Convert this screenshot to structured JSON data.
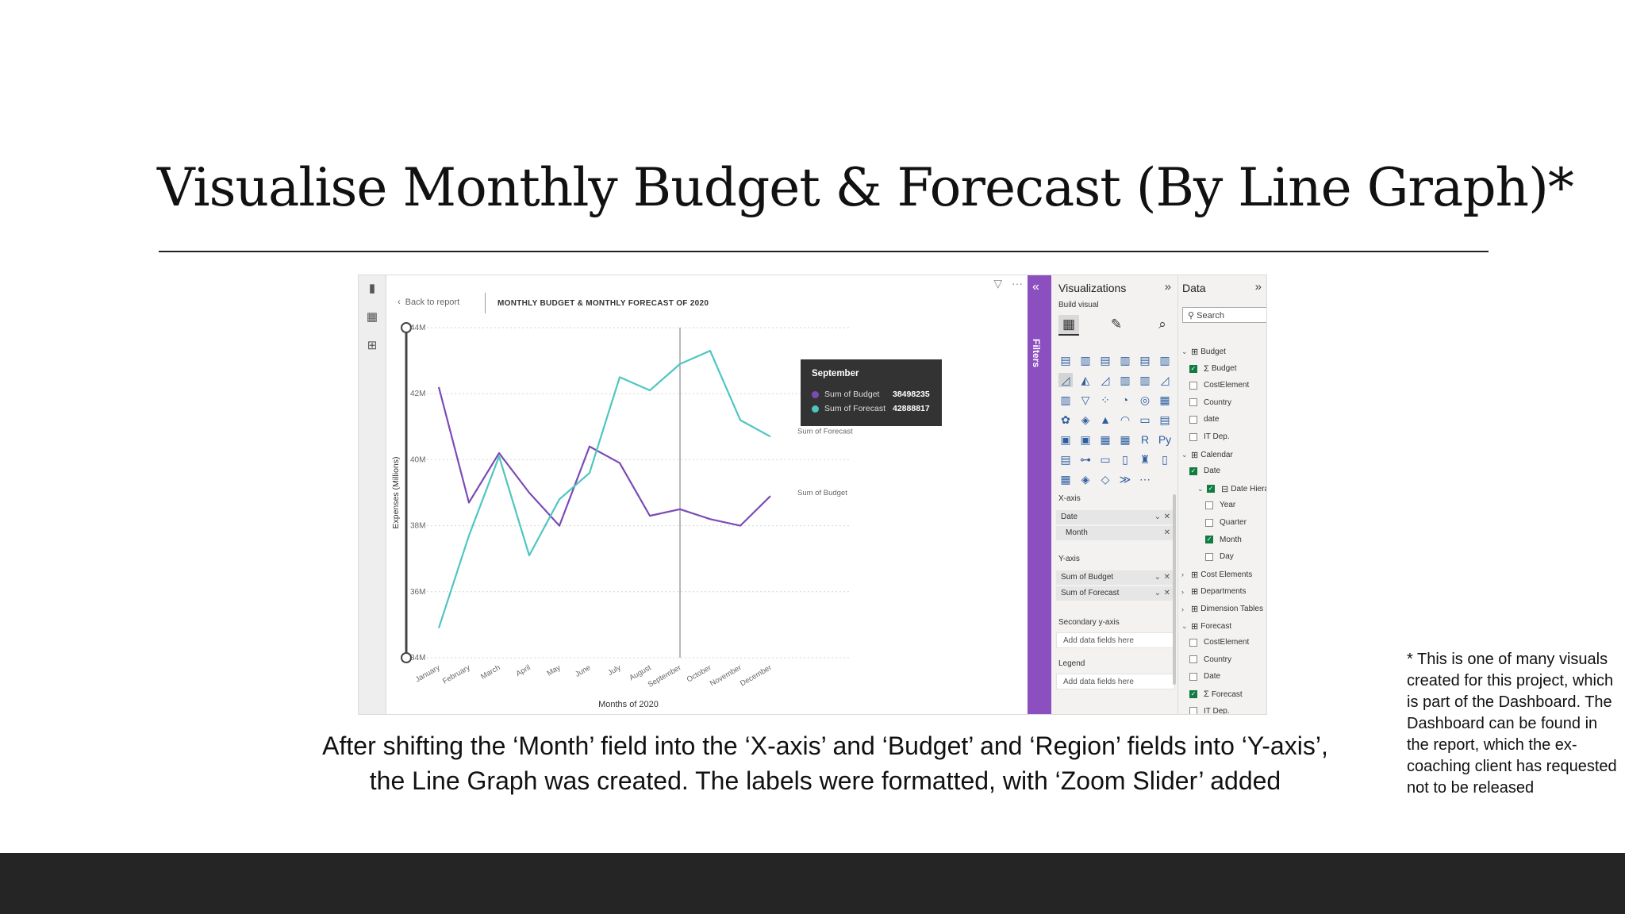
{
  "slide": {
    "title": "Visualise Monthly Budget & Forecast (By Line Graph)*",
    "caption_line1": "After shifting the ‘Month’ field into the ‘X-axis’ and ‘Budget’ and ‘Region’ fields into ‘Y-axis’,",
    "caption_line2": "the Line Graph was created. The labels were formatted, with ‘Zoom Slider’ added",
    "footnote": "* This is one of many visuals created for this project, which is part of the Dashboard. The Dashboard can be found in the report, which the ex-coaching client has requested not to be released"
  },
  "report": {
    "back_label": "Back to report",
    "visual_title": "MONTHLY BUDGET & MONTHLY FORECAST OF 2020",
    "tooltip": {
      "title": "September",
      "rows": [
        {
          "label": "Sum of Budget",
          "value": "38498235"
        },
        {
          "label": "Sum of Forecast",
          "value": "42888817"
        }
      ]
    }
  },
  "colors": {
    "budget": "#7b4bb5",
    "forecast": "#4ec6c0",
    "filters_strip": "#8b4fbf",
    "checkbox_on": "#107c41"
  },
  "chart_data": {
    "type": "line",
    "xlabel": "Months of 2020",
    "ylabel": "Expenses (Millions)",
    "categories": [
      "January",
      "February",
      "March",
      "April",
      "May",
      "June",
      "July",
      "August",
      "September",
      "October",
      "November",
      "December"
    ],
    "y_ticks": [
      "44M",
      "42M",
      "40M",
      "38M",
      "36M",
      "34M"
    ],
    "ylim": [
      34,
      44
    ],
    "grid": true,
    "hover_category": "September",
    "series": [
      {
        "name": "Sum of Budget",
        "values": [
          42.2,
          38.7,
          40.2,
          39.0,
          38.0,
          40.4,
          39.9,
          38.3,
          38.5,
          38.2,
          38.0,
          38.9
        ]
      },
      {
        "name": "Sum of Forecast",
        "values": [
          34.9,
          37.7,
          40.1,
          37.1,
          38.8,
          39.6,
          42.5,
          42.1,
          42.9,
          43.3,
          41.2,
          40.7
        ]
      }
    ]
  },
  "viz_pane": {
    "title": "Visualizations",
    "build_label": "Build visual",
    "wells": {
      "x_axis": {
        "label": "X-axis",
        "field": "Date",
        "sub_field": "Month"
      },
      "y_axis": {
        "label": "Y-axis",
        "fields": [
          "Sum of Budget",
          "Sum of Forecast"
        ]
      },
      "secondary": {
        "label": "Secondary y-axis",
        "placeholder": "Add data fields here"
      },
      "legend": {
        "label": "Legend",
        "placeholder": "Add data fields here"
      }
    }
  },
  "filters_label": "Filters",
  "data_pane": {
    "title": "Data",
    "search_placeholder": "Search",
    "tree": [
      {
        "label": "Budget",
        "level": 0,
        "type": "table",
        "expanded": true
      },
      {
        "label": "Budget",
        "level": 1,
        "type": "measure",
        "checked": true
      },
      {
        "label": "CostElement",
        "level": 1,
        "type": "field",
        "checked": false
      },
      {
        "label": "Country",
        "level": 1,
        "type": "field",
        "checked": false
      },
      {
        "label": "date",
        "level": 1,
        "type": "field",
        "checked": false
      },
      {
        "label": "IT Dep.",
        "level": 1,
        "type": "field",
        "checked": false
      },
      {
        "label": "Calendar",
        "level": 0,
        "type": "table",
        "expanded": true
      },
      {
        "label": "Date",
        "level": 1,
        "type": "field",
        "checked": true
      },
      {
        "label": "Date Hierarc...",
        "level": 2,
        "type": "hier",
        "checked": true
      },
      {
        "label": "Year",
        "level": 3,
        "type": "field",
        "checked": false
      },
      {
        "label": "Quarter",
        "level": 3,
        "type": "field",
        "checked": false
      },
      {
        "label": "Month",
        "level": 3,
        "type": "field",
        "checked": true
      },
      {
        "label": "Day",
        "level": 3,
        "type": "field",
        "checked": false
      },
      {
        "label": "Cost Elements",
        "level": 0,
        "type": "table",
        "expanded": false
      },
      {
        "label": "Departments",
        "level": 0,
        "type": "table",
        "expanded": false
      },
      {
        "label": "Dimension Tables",
        "level": 0,
        "type": "table",
        "expanded": false
      },
      {
        "label": "Forecast",
        "level": 0,
        "type": "table",
        "expanded": true
      },
      {
        "label": "CostElement",
        "level": 1,
        "type": "field",
        "checked": false
      },
      {
        "label": "Country",
        "level": 1,
        "type": "field",
        "checked": false
      },
      {
        "label": "Date",
        "level": 1,
        "type": "field",
        "checked": false
      },
      {
        "label": "Forecast",
        "level": 1,
        "type": "measure",
        "checked": true
      },
      {
        "label": "IT Dep.",
        "level": 1,
        "type": "field",
        "checked": false
      }
    ]
  }
}
